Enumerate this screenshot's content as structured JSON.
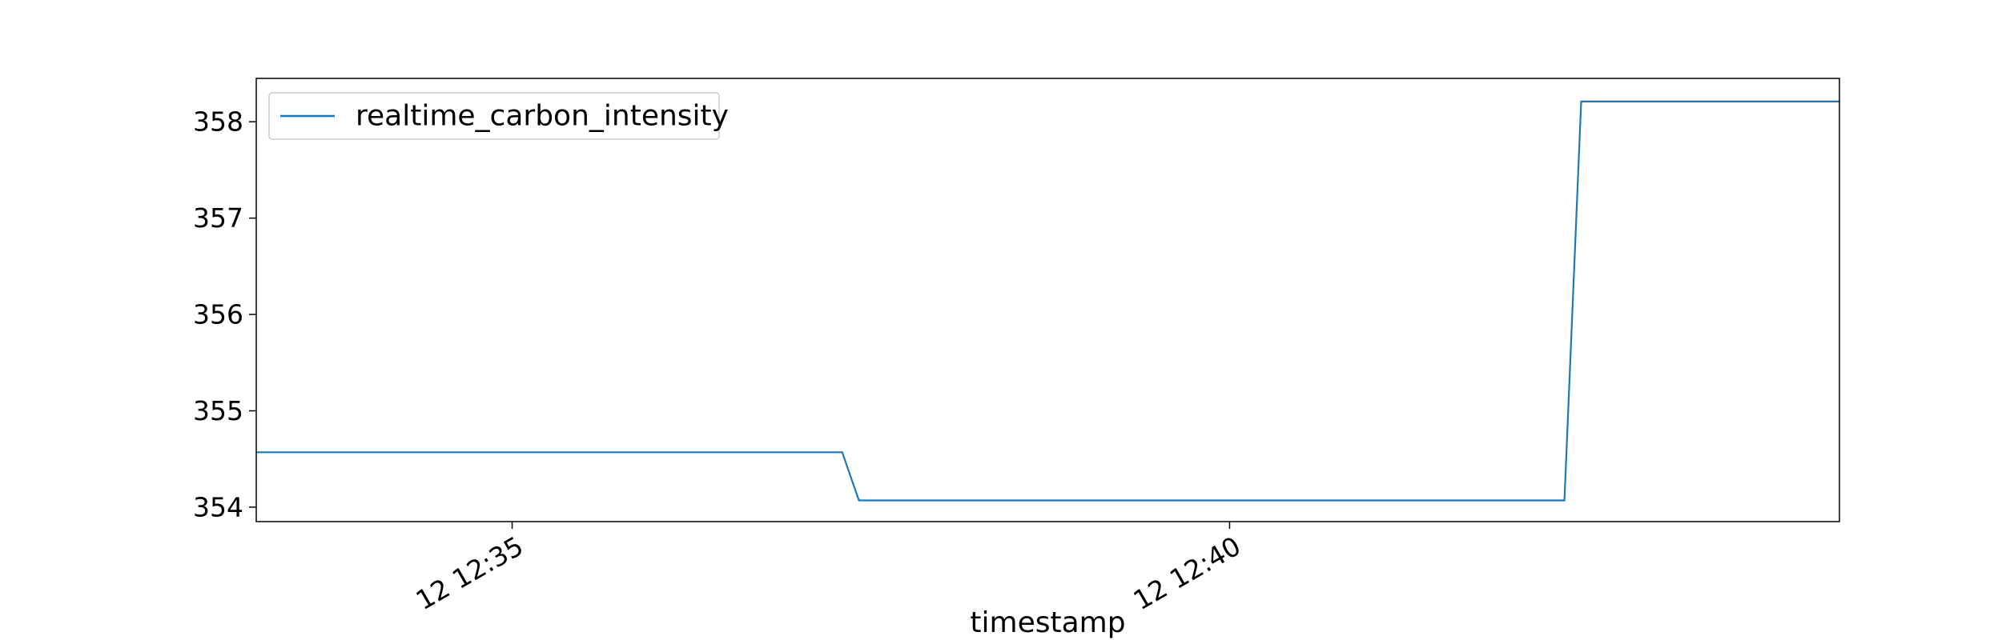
{
  "chart_data": {
    "type": "line",
    "title": "",
    "xlabel": "timestamp",
    "ylabel": "",
    "legend_location": "upper-left",
    "grid": false,
    "x_ticks": [
      {
        "label": "12 12:35",
        "x": "12:35:00"
      },
      {
        "label": "12 12:40",
        "x": "12:40:00"
      }
    ],
    "y_ticks": [
      "354",
      "355",
      "356",
      "357",
      "358"
    ],
    "xlim": [
      "12:33:13",
      "12:44:15"
    ],
    "ylim": [
      353.85,
      358.45
    ],
    "series": [
      {
        "name": "realtime_carbon_intensity",
        "color": "#1f77b4",
        "points": [
          {
            "x": "12:33:13",
            "y": 354.57
          },
          {
            "x": "12:37:18",
            "y": 354.57
          },
          {
            "x": "12:37:25",
            "y": 354.07
          },
          {
            "x": "12:42:20",
            "y": 354.07
          },
          {
            "x": "12:42:27",
            "y": 358.21
          },
          {
            "x": "12:44:15",
            "y": 358.21
          }
        ]
      }
    ]
  }
}
